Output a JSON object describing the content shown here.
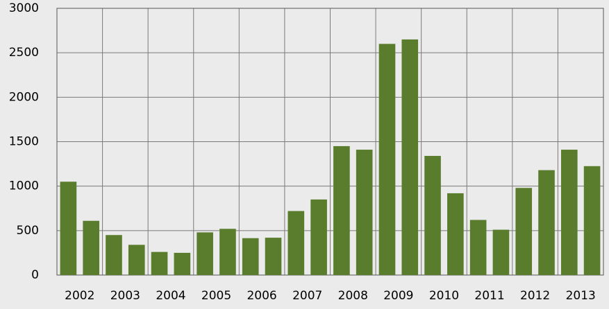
{
  "chart_data": {
    "type": "bar",
    "categories": [
      "2002",
      null,
      "2003",
      null,
      "2004",
      null,
      "2005",
      null,
      "2006",
      null,
      "2007",
      null,
      "2008",
      null,
      "2009",
      null,
      "2010",
      null,
      "2011",
      null,
      "2012",
      null,
      "2013",
      null
    ],
    "values": [
      1050,
      610,
      450,
      340,
      260,
      250,
      480,
      520,
      415,
      420,
      720,
      850,
      1450,
      1410,
      2600,
      2650,
      1340,
      920,
      620,
      510,
      980,
      1180,
      1410,
      1225
    ],
    "color": "#5a7d2d",
    "ylim": [
      0,
      3000
    ],
    "yticks": [
      0,
      500,
      1000,
      1500,
      2000,
      2500,
      3000
    ],
    "grid": true
  }
}
